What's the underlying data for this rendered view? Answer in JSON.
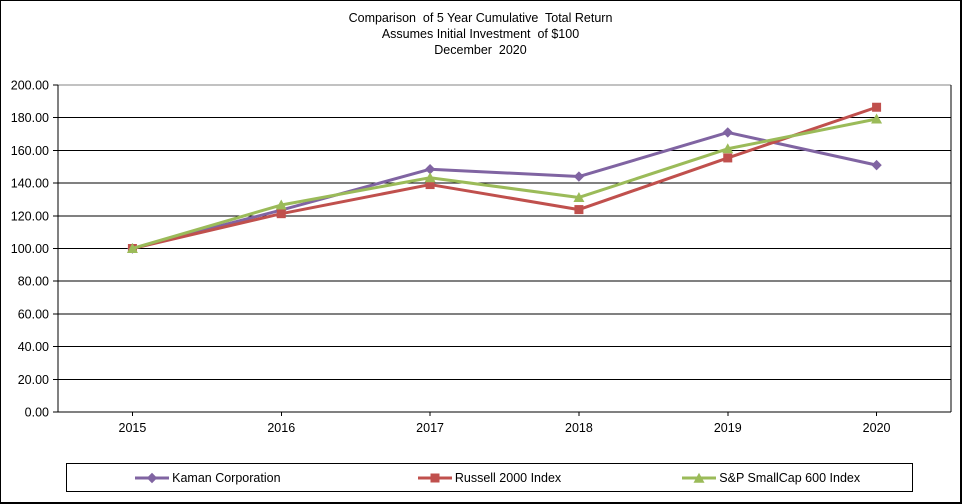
{
  "title": {
    "line1": "Comparison  of 5 Year Cumulative  Total Return",
    "line2": "Assumes Initial Investment  of $100",
    "line3": "December  2020"
  },
  "chart_data": {
    "type": "line",
    "title": "Comparison of 5 Year Cumulative Total Return - Assumes Initial Investment of $100 - December 2020",
    "categories": [
      "2015",
      "2016",
      "2017",
      "2018",
      "2019",
      "2020"
    ],
    "series": [
      {
        "name": "Kaman Corporation",
        "color": "#8064A2",
        "marker": "diamond",
        "values": [
          100.0,
          123.5,
          148.5,
          144.0,
          171.0,
          151.0
        ]
      },
      {
        "name": "Russell 2000 Index",
        "color": "#C0504D",
        "marker": "square",
        "values": [
          100.0,
          121.3,
          139.1,
          123.8,
          155.4,
          186.4
        ]
      },
      {
        "name": "S&P SmallCap 600 Index",
        "color": "#9BBB59",
        "marker": "triangle",
        "values": [
          100.0,
          126.6,
          143.3,
          131.2,
          161.0,
          179.2
        ]
      }
    ],
    "xlabel": "",
    "ylabel": "",
    "ylim": [
      0,
      200
    ],
    "ytick_step": 20,
    "ytick_labels": [
      "0.00",
      "20.00",
      "40.00",
      "60.00",
      "80.00",
      "100.00",
      "120.00",
      "140.00",
      "160.00",
      "180.00",
      "200.00"
    ],
    "grid": "horizontal",
    "legend_position": "bottom"
  },
  "colors": {
    "axis": "#000000",
    "gridline": "#000000",
    "top_border": "#848484",
    "background": "#FFFFFF",
    "text": "#000000"
  }
}
